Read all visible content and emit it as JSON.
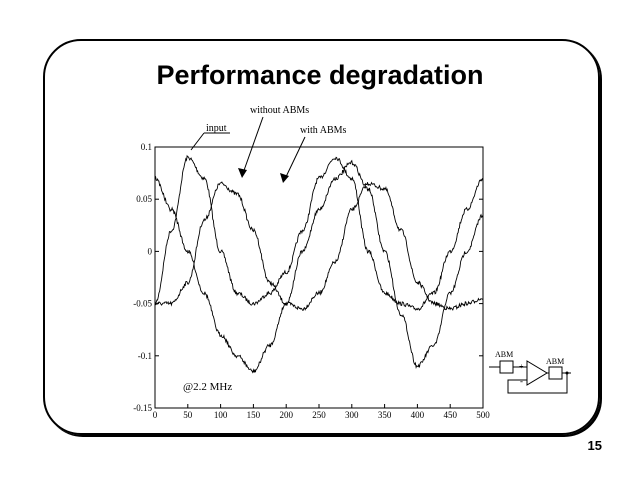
{
  "slide": {
    "title": "Performance degradation",
    "page_number": "15"
  },
  "chart_data": {
    "type": "line",
    "xlim": [
      0,
      500
    ],
    "ylim": [
      -0.15,
      0.1
    ],
    "xticks": [
      "0",
      "50",
      "100",
      "150",
      "200",
      "250",
      "300",
      "350",
      "400",
      "450",
      "500"
    ],
    "yticks": [
      "0.1",
      "0.05",
      "0",
      "-0.05",
      "-0.1",
      "-0.15"
    ],
    "annotations": {
      "input": "input",
      "without": "without ABMs",
      "with": "with ABMs",
      "freq": "@2.2 MHz"
    },
    "series": [
      {
        "name": "input",
        "x": [
          0,
          25,
          50,
          75,
          100,
          125,
          150,
          175,
          200,
          225,
          250,
          275,
          300,
          325,
          350,
          375,
          400,
          425,
          450,
          475,
          500
        ],
        "values": [
          -0.05,
          0.02,
          0.09,
          0.07,
          0.0,
          -0.04,
          -0.05,
          -0.04,
          -0.02,
          0.02,
          0.07,
          0.09,
          0.07,
          0.0,
          -0.04,
          -0.05,
          -0.055,
          -0.04,
          0.0,
          0.04,
          0.07
        ]
      },
      {
        "name": "without ABMs",
        "x": [
          0,
          25,
          50,
          75,
          100,
          125,
          150,
          175,
          200,
          225,
          250,
          275,
          300,
          325,
          350,
          375,
          400,
          425,
          450,
          475,
          500
        ],
        "values": [
          -0.05,
          -0.05,
          -0.03,
          0.03,
          0.065,
          0.055,
          0.02,
          -0.03,
          -0.05,
          -0.055,
          -0.04,
          -0.01,
          0.04,
          0.065,
          0.06,
          0.02,
          -0.03,
          -0.05,
          -0.055,
          -0.05,
          -0.045
        ]
      },
      {
        "name": "with ABMs",
        "x": [
          0,
          25,
          50,
          75,
          100,
          125,
          150,
          175,
          200,
          225,
          250,
          275,
          300,
          325,
          350,
          375,
          400,
          425,
          450,
          475,
          500
        ],
        "values": [
          0.07,
          0.04,
          0.0,
          -0.04,
          -0.08,
          -0.1,
          -0.115,
          -0.09,
          -0.05,
          0.0,
          0.04,
          0.07,
          0.085,
          0.06,
          0.0,
          -0.06,
          -0.11,
          -0.09,
          -0.04,
          0.0,
          0.035
        ]
      }
    ]
  },
  "schematic": {
    "abm_left": "ABM",
    "abm_right": "ABM",
    "plus": "+",
    "minus": "-"
  }
}
